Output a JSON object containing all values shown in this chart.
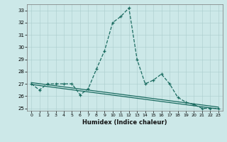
{
  "xlabel": "Humidex (Indice chaleur)",
  "xlim": [
    -0.5,
    23.5
  ],
  "ylim": [
    24.8,
    33.5
  ],
  "yticks": [
    25,
    26,
    27,
    28,
    29,
    30,
    31,
    32,
    33
  ],
  "xticks": [
    0,
    1,
    2,
    3,
    4,
    5,
    6,
    7,
    8,
    9,
    10,
    11,
    12,
    13,
    14,
    15,
    16,
    17,
    18,
    19,
    20,
    21,
    22,
    23
  ],
  "bg_color": "#cce8e8",
  "line_color": "#1a6b60",
  "series1_x": [
    0,
    1,
    2,
    3,
    4,
    5,
    6,
    7,
    8,
    9,
    10,
    11,
    12,
    13,
    14,
    15,
    16,
    17,
    18,
    19,
    20,
    21,
    22,
    23
  ],
  "series1_y": [
    27.0,
    26.5,
    27.0,
    27.0,
    27.0,
    27.0,
    26.1,
    26.6,
    28.2,
    29.7,
    32.0,
    32.5,
    33.2,
    29.0,
    27.0,
    27.3,
    27.8,
    27.0,
    25.9,
    25.5,
    25.3,
    25.0,
    25.0,
    25.0
  ],
  "trend1_x": [
    0,
    23
  ],
  "trend1_y": [
    27.1,
    25.1
  ],
  "trend2_x": [
    0,
    23
  ],
  "trend2_y": [
    26.95,
    24.95
  ]
}
